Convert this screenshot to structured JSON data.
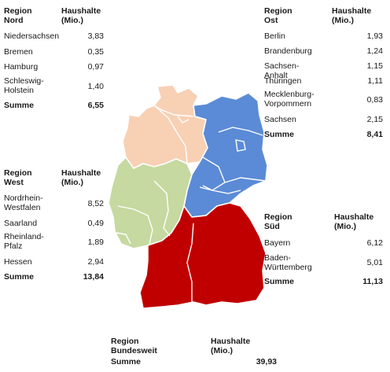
{
  "colors": {
    "nord": "#f8d0b4",
    "ost": "#5b8bd6",
    "west": "#c6d9a0",
    "sued": "#c00000",
    "border": "#ffffff"
  },
  "nord": {
    "title": "Region Nord",
    "value_header": "Haushalte (Mio.)",
    "rows": [
      {
        "label": "Niedersachsen",
        "value": "3,83"
      },
      {
        "label": "Bremen",
        "value": "0,35"
      },
      {
        "label": "Hamburg",
        "value": "0,97"
      },
      {
        "label": "Schleswig-Holstein",
        "value": "1,40"
      }
    ],
    "sum_label": "Summe",
    "sum_value": "6,55"
  },
  "ost": {
    "title": "Region Ost",
    "value_header": "Haushalte (Mio.)",
    "rows": [
      {
        "label": "Berlin",
        "value": "1,93"
      },
      {
        "label": "Brandenburg",
        "value": "1,24"
      },
      {
        "label": "Sachsen-Anhalt",
        "value": "1,15"
      },
      {
        "label": "Thüringen",
        "value": "1,11"
      },
      {
        "label": "Mecklenburg-Vorpommern",
        "value": "0,83"
      },
      {
        "label": "Sachsen",
        "value": "2,15"
      }
    ],
    "sum_label": "Summe",
    "sum_value": "8,41"
  },
  "west": {
    "title": "Region West",
    "value_header": "Haushalte (Mio.)",
    "rows": [
      {
        "label": "Nordrhein-Westfalen",
        "value": "8,52"
      },
      {
        "label": "Saarland",
        "value": "0,49"
      },
      {
        "label": "Rheinland-Pfalz",
        "value": "1,89"
      },
      {
        "label": "Hessen",
        "value": "2,94"
      }
    ],
    "sum_label": "Summe",
    "sum_value": "13,84"
  },
  "sued": {
    "title": "Region Süd",
    "value_header": "Haushalte (Mio.)",
    "rows": [
      {
        "label": "Bayern",
        "value": "6,12"
      },
      {
        "label": "Baden-Württemberg",
        "value": "5,01"
      }
    ],
    "sum_label": "Summe",
    "sum_value": "11,13"
  },
  "bund": {
    "title": "Region Bundesweit",
    "value_header": "Haushalte (Mio.)",
    "sum_label": "Summe",
    "sum_value": "39,93"
  }
}
